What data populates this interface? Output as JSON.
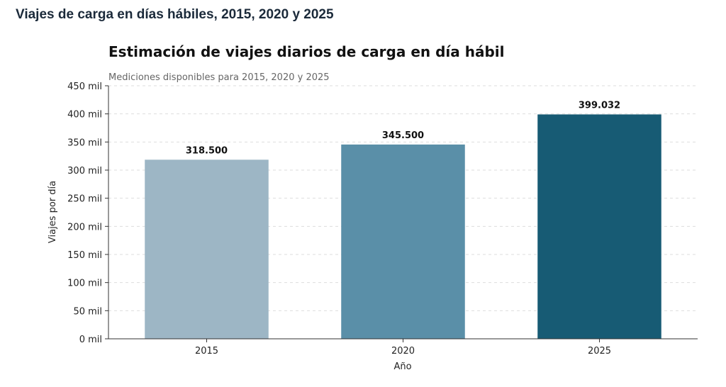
{
  "page": {
    "heading": "Viajes de carga en días hábiles, 2015, 2020 y 2025"
  },
  "chart_data": {
    "type": "bar",
    "title": "Estimación de viajes diarios de carga en día hábil",
    "subtitle": "Mediciones disponibles para 2015, 2020 y 2025",
    "xlabel": "Año",
    "ylabel": "Viajes por día",
    "categories": [
      "2015",
      "2020",
      "2025"
    ],
    "values": [
      318500,
      345500,
      399032
    ],
    "value_labels": [
      "318.500",
      "345.500",
      "399.032"
    ],
    "colors": [
      "#9db6c5",
      "#5a8fa8",
      "#175b74"
    ],
    "ylim": [
      0,
      450000
    ],
    "yticks": [
      0,
      50000,
      100000,
      150000,
      200000,
      250000,
      300000,
      350000,
      400000,
      450000
    ],
    "ytick_labels": [
      "0 mil",
      "50 mil",
      "100 mil",
      "150 mil",
      "200 mil",
      "250 mil",
      "300 mil",
      "350 mil",
      "400 mil",
      "450 mil"
    ],
    "grid": true,
    "legend": "none"
  }
}
